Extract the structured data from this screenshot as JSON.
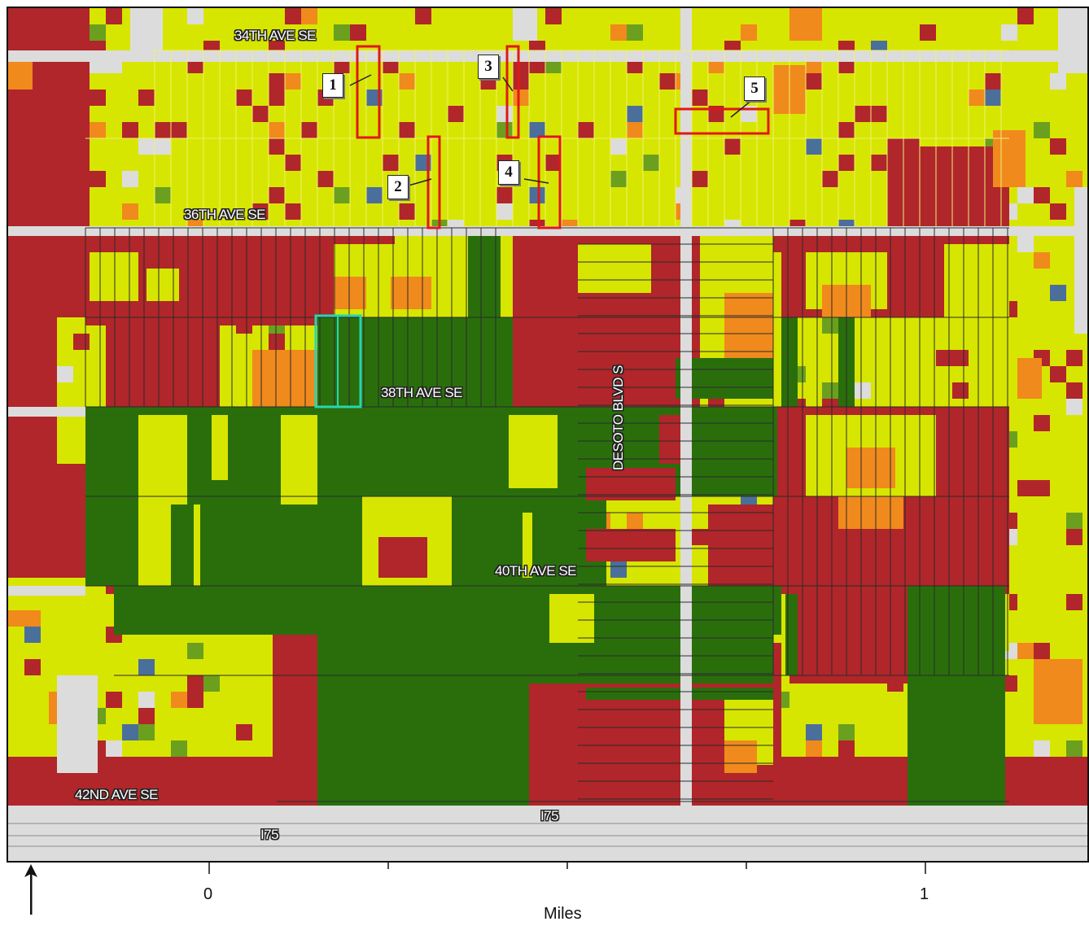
{
  "map": {
    "streets": [
      {
        "key": "s34",
        "label": "34TH AVE SE"
      },
      {
        "key": "s36",
        "label": "36TH AVE SE"
      },
      {
        "key": "s38",
        "label": "38TH AVE SE"
      },
      {
        "key": "s40",
        "label": "40TH AVE SE"
      },
      {
        "key": "s42",
        "label": "42ND AVE SE"
      },
      {
        "key": "desoto",
        "label": "DESOTO BLVD S"
      },
      {
        "key": "i75a",
        "label": "I75"
      },
      {
        "key": "i75b",
        "label": "I75"
      }
    ],
    "callouts": [
      "1",
      "2",
      "3",
      "4",
      "5"
    ],
    "legend_colors": {
      "high_suitability": "#d7e600",
      "medium": "#f08a1c",
      "low": "#b0262a",
      "conservation": "#2a6e0c",
      "green": "#6aa01e",
      "water": "#4a6f9a",
      "road_cleared": "#dcdcdc",
      "parcel_outline_yellow": "#f0f070",
      "callout_box": "#e01818",
      "selected_parcel": "#26d6b0"
    }
  },
  "scale_bar": {
    "tick_labels": [
      "0",
      "1"
    ],
    "unit": "Miles"
  },
  "north_arrow": {
    "icon": "north-arrow-icon"
  }
}
